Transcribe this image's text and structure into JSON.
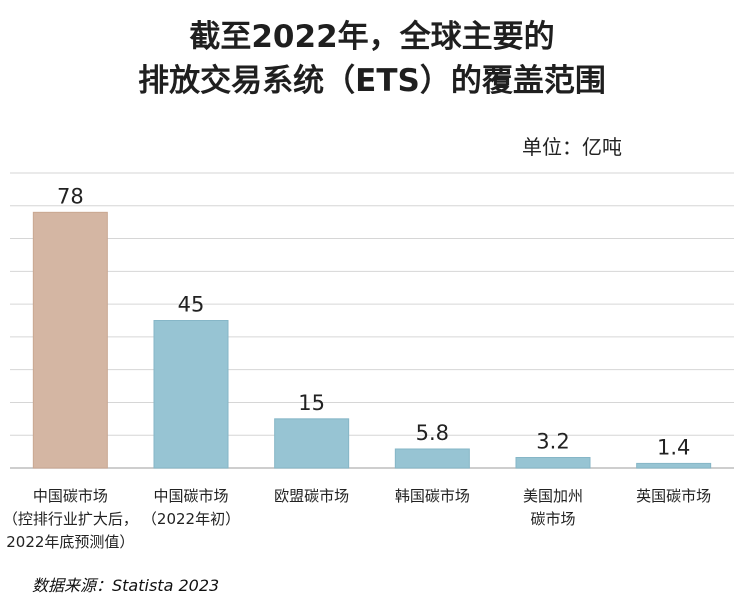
{
  "title_line1": "截至2022年，全球主要的",
  "title_line2": "排放交易系统（ETS）的覆盖范围",
  "unit_label": "单位：亿吨",
  "source": "数据来源：Statista 2023",
  "chart_data": {
    "type": "bar",
    "categories": [
      [
        "中国碳市场",
        "（控排行业扩大后，",
        "2022年底预测值）"
      ],
      [
        "中国碳市场",
        "（2022年初）"
      ],
      [
        "欧盟碳市场"
      ],
      [
        "韩国碳市场"
      ],
      [
        "美国加州",
        "碳市场"
      ],
      [
        "英国碳市场"
      ]
    ],
    "values": [
      78,
      45,
      15,
      5.8,
      3.2,
      1.4
    ],
    "value_labels": [
      "78",
      "45",
      "15",
      "5.8",
      "3.2",
      "1.4"
    ],
    "ylim": [
      0,
      90
    ],
    "grid": true,
    "colors": {
      "highlight_bar": "#d4b6a3",
      "bar": "#97c4d3",
      "highlight_edge": "#c9a792",
      "bar_edge": "#86b6c7",
      "grid": "#d6d6d6"
    },
    "highlight_index": 0
  }
}
